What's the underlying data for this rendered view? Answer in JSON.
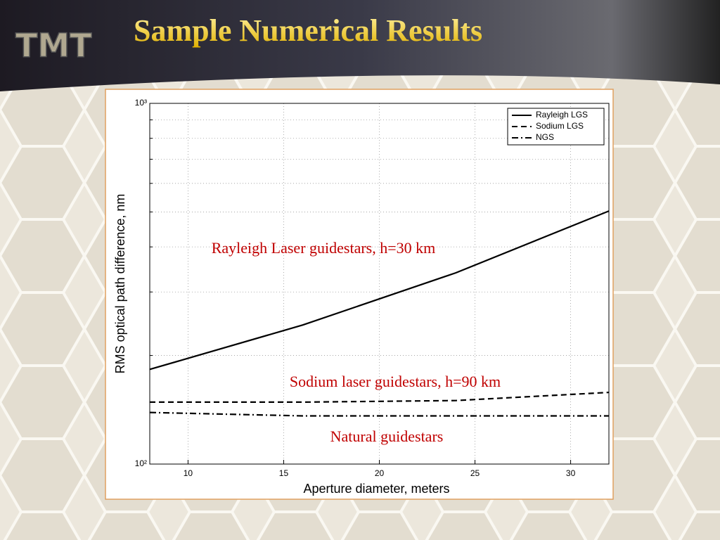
{
  "header": {
    "logo": "TMT",
    "title": "Sample Numerical Results"
  },
  "chart_data": {
    "type": "line",
    "log_y": true,
    "grid": true,
    "x_label": "Aperture diameter, meters",
    "y_label": "RMS optical path difference, nm",
    "x": [
      8,
      16,
      24,
      32
    ],
    "xlim": [
      8,
      32
    ],
    "xticks": [
      10,
      15,
      20,
      25,
      30
    ],
    "ylim": [
      100,
      1000
    ],
    "yticks": [
      {
        "value": 100,
        "label": "10²"
      },
      {
        "value": 1000,
        "label": "10³"
      }
    ],
    "yminorticks": [
      200,
      300,
      400,
      500,
      600,
      700,
      800,
      900
    ],
    "legend": "upper right",
    "series": [
      {
        "name": "Rayleigh LGS",
        "color": "#000000",
        "style": "solid",
        "values": [
          183,
          243,
          339,
          503
        ]
      },
      {
        "name": "Sodium LGS",
        "color": "#000000",
        "style": "dashed",
        "values": [
          148.5,
          148.5,
          150,
          158
        ]
      },
      {
        "name": "NGS",
        "color": "#000000",
        "style": "dashdot",
        "values": [
          139,
          136,
          136,
          136
        ]
      }
    ],
    "annotations": [
      "Rayleigh Laser guidestars, h=30 km",
      "Sodium laser guidestars, h=90 km",
      "Natural guidestars"
    ],
    "annotation_color": "#c00000"
  }
}
